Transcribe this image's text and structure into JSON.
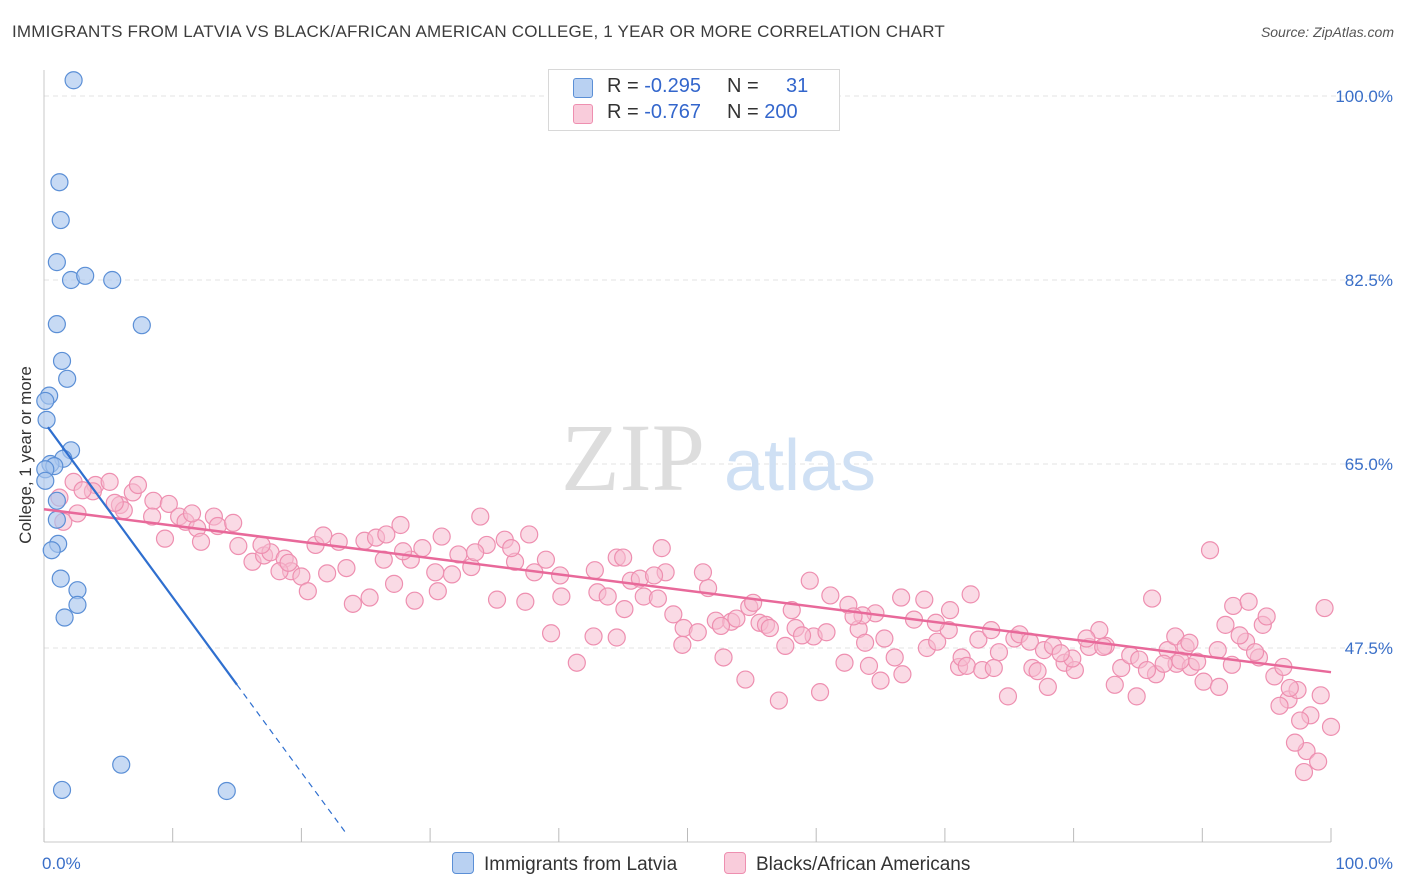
{
  "title": "IMMIGRANTS FROM LATVIA VS BLACK/AFRICAN AMERICAN COLLEGE, 1 YEAR OR MORE CORRELATION CHART",
  "source": "Source: ZipAtlas.com",
  "watermark": {
    "zip": "ZIP",
    "atlas": "atlas"
  },
  "legend": {
    "rows": [
      {
        "r_label": "R =",
        "r_value": "-0.295",
        "n_label": "N =",
        "n_value": "31"
      },
      {
        "r_label": "R =",
        "r_value": "-0.767",
        "n_label": "N =",
        "n_value": "200"
      }
    ]
  },
  "colors": {
    "blue_fill": "#a9c6ee",
    "blue_stroke": "#5b8fd6",
    "blue_line": "#2f6fcf",
    "pink_fill": "#f6bcd0",
    "pink_stroke": "#ee8fb0",
    "pink_line": "#e8699a",
    "grid": "#e3e3e3",
    "tick_label": "#3a6fc8"
  },
  "chart_data": {
    "type": "scatter",
    "title": "IMMIGRANTS FROM LATVIA VS BLACK/AFRICAN AMERICAN COLLEGE, 1 YEAR OR MORE CORRELATION CHART",
    "xlabel": "",
    "ylabel": "College, 1 year or more",
    "xlim": [
      0,
      100
    ],
    "ylim": [
      30,
      102
    ],
    "x_tick_labels": [
      "0.0%",
      "100.0%"
    ],
    "y_ticks": [
      47.5,
      65.0,
      82.5,
      100.0
    ],
    "y_tick_labels": [
      "47.5%",
      "65.0%",
      "82.5%",
      "100.0%"
    ],
    "series": [
      {
        "name": "Immigrants from Latvia",
        "R": -0.295,
        "N": 31,
        "trend": {
          "x0": 0.3,
          "y0": 68.5,
          "x1": 15.0,
          "y1": 44.0,
          "dash_x1": 23.5
        },
        "points": [
          [
            2.3,
            101.5
          ],
          [
            1.2,
            91.8
          ],
          [
            1.3,
            88.2
          ],
          [
            1.0,
            84.2
          ],
          [
            2.1,
            82.5
          ],
          [
            3.2,
            82.9
          ],
          [
            5.3,
            82.5
          ],
          [
            1.0,
            78.3
          ],
          [
            7.6,
            78.2
          ],
          [
            1.4,
            74.8
          ],
          [
            1.8,
            73.1
          ],
          [
            0.4,
            71.5
          ],
          [
            0.1,
            71.0
          ],
          [
            0.2,
            69.2
          ],
          [
            2.1,
            66.3
          ],
          [
            1.5,
            65.5
          ],
          [
            0.5,
            65.0
          ],
          [
            0.8,
            64.8
          ],
          [
            0.1,
            64.5
          ],
          [
            1.0,
            61.5
          ],
          [
            1.0,
            59.7
          ],
          [
            1.1,
            57.4
          ],
          [
            0.6,
            56.8
          ],
          [
            1.3,
            54.1
          ],
          [
            2.6,
            53.0
          ],
          [
            2.6,
            51.6
          ],
          [
            1.6,
            50.4
          ],
          [
            6.0,
            36.4
          ],
          [
            1.4,
            34.0
          ],
          [
            14.2,
            33.9
          ],
          [
            0.1,
            63.4
          ]
        ]
      },
      {
        "name": "Blacks/African Americans",
        "R": -0.767,
        "N": 200,
        "trend": {
          "x0": 0.0,
          "y0": 60.7,
          "x1": 100.0,
          "y1": 45.2
        },
        "points": [
          [
            1.2,
            61.8
          ],
          [
            2.3,
            63.3
          ],
          [
            4.0,
            63.0
          ],
          [
            5.1,
            63.3
          ],
          [
            3.8,
            62.4
          ],
          [
            5.9,
            61.1
          ],
          [
            6.9,
            62.3
          ],
          [
            7.3,
            63.0
          ],
          [
            8.5,
            61.5
          ],
          [
            8.4,
            60.0
          ],
          [
            9.7,
            61.2
          ],
          [
            10.5,
            60.0
          ],
          [
            11.0,
            59.5
          ],
          [
            11.9,
            58.9
          ],
          [
            13.2,
            60.0
          ],
          [
            13.5,
            59.1
          ],
          [
            14.7,
            59.4
          ],
          [
            16.2,
            55.7
          ],
          [
            17.1,
            56.3
          ],
          [
            17.6,
            56.6
          ],
          [
            18.7,
            56.0
          ],
          [
            16.9,
            57.3
          ],
          [
            19.2,
            54.8
          ],
          [
            20.0,
            54.3
          ],
          [
            21.1,
            57.3
          ],
          [
            22.9,
            57.6
          ],
          [
            21.7,
            58.2
          ],
          [
            23.5,
            55.1
          ],
          [
            24.9,
            57.7
          ],
          [
            26.4,
            55.9
          ],
          [
            25.8,
            58.0
          ],
          [
            26.6,
            58.3
          ],
          [
            27.7,
            59.2
          ],
          [
            28.5,
            55.9
          ],
          [
            29.4,
            57.0
          ],
          [
            30.4,
            54.7
          ],
          [
            30.6,
            52.9
          ],
          [
            31.7,
            54.5
          ],
          [
            32.2,
            56.4
          ],
          [
            33.9,
            60.0
          ],
          [
            34.4,
            57.3
          ],
          [
            35.8,
            57.8
          ],
          [
            36.6,
            55.7
          ],
          [
            37.7,
            58.3
          ],
          [
            38.1,
            54.7
          ],
          [
            39.0,
            55.9
          ],
          [
            40.1,
            54.4
          ],
          [
            40.2,
            52.4
          ],
          [
            42.8,
            54.9
          ],
          [
            43.0,
            52.8
          ],
          [
            43.8,
            52.4
          ],
          [
            45.1,
            51.2
          ],
          [
            45.6,
            53.9
          ],
          [
            46.6,
            52.4
          ],
          [
            47.7,
            52.2
          ],
          [
            48.9,
            50.7
          ],
          [
            48.3,
            54.7
          ],
          [
            49.7,
            49.4
          ],
          [
            50.8,
            49.0
          ],
          [
            51.6,
            53.2
          ],
          [
            52.2,
            50.1
          ],
          [
            53.4,
            50.0
          ],
          [
            54.8,
            51.4
          ],
          [
            55.6,
            49.9
          ],
          [
            56.1,
            49.7
          ],
          [
            57.6,
            47.7
          ],
          [
            58.1,
            51.1
          ],
          [
            58.4,
            49.4
          ],
          [
            59.8,
            48.6
          ],
          [
            60.8,
            49.0
          ],
          [
            62.5,
            51.6
          ],
          [
            63.3,
            49.3
          ],
          [
            63.8,
            48.0
          ],
          [
            64.6,
            50.8
          ],
          [
            65.3,
            48.4
          ],
          [
            66.1,
            46.6
          ],
          [
            67.6,
            50.2
          ],
          [
            68.6,
            47.5
          ],
          [
            69.4,
            48.1
          ],
          [
            70.3,
            49.2
          ],
          [
            71.1,
            45.7
          ],
          [
            71.3,
            46.6
          ],
          [
            72.6,
            48.3
          ],
          [
            73.6,
            49.2
          ],
          [
            74.2,
            47.1
          ],
          [
            75.4,
            48.4
          ],
          [
            75.8,
            48.8
          ],
          [
            76.6,
            48.1
          ],
          [
            77.7,
            47.3
          ],
          [
            78.4,
            47.7
          ],
          [
            79.3,
            46.1
          ],
          [
            80.1,
            45.4
          ],
          [
            81.2,
            47.6
          ],
          [
            82.0,
            49.2
          ],
          [
            82.5,
            47.7
          ],
          [
            83.7,
            45.6
          ],
          [
            84.4,
            46.8
          ],
          [
            85.1,
            46.4
          ],
          [
            86.4,
            45.0
          ],
          [
            87.3,
            47.3
          ],
          [
            88.0,
            46.0
          ],
          [
            89.1,
            45.7
          ],
          [
            90.1,
            44.3
          ],
          [
            91.2,
            47.3
          ],
          [
            92.3,
            45.9
          ],
          [
            93.4,
            48.1
          ],
          [
            94.4,
            46.6
          ],
          [
            95.6,
            44.8
          ],
          [
            96.7,
            42.6
          ],
          [
            97.4,
            43.5
          ],
          [
            98.4,
            41.1
          ],
          [
            99.2,
            43.0
          ],
          [
            1.5,
            59.5
          ],
          [
            2.6,
            60.3
          ],
          [
            6.2,
            60.6
          ],
          [
            9.4,
            57.9
          ],
          [
            12.2,
            57.6
          ],
          [
            15.1,
            57.2
          ],
          [
            18.3,
            54.8
          ],
          [
            20.5,
            52.9
          ],
          [
            22.0,
            54.6
          ],
          [
            24.0,
            51.7
          ],
          [
            25.3,
            52.3
          ],
          [
            27.2,
            53.6
          ],
          [
            28.8,
            52.0
          ],
          [
            30.9,
            58.1
          ],
          [
            33.2,
            55.2
          ],
          [
            35.2,
            52.1
          ],
          [
            37.4,
            51.9
          ],
          [
            39.4,
            48.9
          ],
          [
            41.4,
            46.1
          ],
          [
            42.7,
            48.6
          ],
          [
            44.5,
            56.1
          ],
          [
            46.3,
            54.1
          ],
          [
            47.4,
            54.4
          ],
          [
            49.6,
            47.8
          ],
          [
            51.2,
            54.7
          ],
          [
            52.8,
            46.6
          ],
          [
            54.5,
            44.5
          ],
          [
            56.4,
            49.4
          ],
          [
            57.1,
            42.5
          ],
          [
            59.5,
            53.9
          ],
          [
            61.1,
            52.5
          ],
          [
            62.2,
            46.1
          ],
          [
            64.1,
            45.8
          ],
          [
            65.0,
            44.4
          ],
          [
            66.7,
            45.0
          ],
          [
            68.4,
            52.1
          ],
          [
            69.3,
            49.9
          ],
          [
            70.4,
            51.1
          ],
          [
            71.7,
            45.8
          ],
          [
            72.9,
            45.4
          ],
          [
            73.8,
            45.6
          ],
          [
            74.9,
            42.9
          ],
          [
            76.8,
            45.6
          ],
          [
            77.2,
            45.3
          ],
          [
            78.0,
            43.8
          ],
          [
            79.9,
            46.5
          ],
          [
            81.0,
            48.4
          ],
          [
            82.3,
            47.6
          ],
          [
            83.2,
            44.0
          ],
          [
            84.9,
            42.9
          ],
          [
            86.1,
            52.2
          ],
          [
            87.9,
            48.6
          ],
          [
            88.7,
            47.6
          ],
          [
            89.6,
            46.2
          ],
          [
            91.3,
            43.8
          ],
          [
            92.4,
            51.5
          ],
          [
            93.6,
            51.9
          ],
          [
            94.7,
            49.7
          ],
          [
            96.0,
            42.0
          ],
          [
            96.8,
            43.7
          ],
          [
            97.6,
            40.6
          ],
          [
            98.1,
            37.7
          ],
          [
            99.0,
            36.7
          ],
          [
            36.3,
            57.0
          ],
          [
            44.5,
            48.5
          ],
          [
            52.6,
            49.6
          ],
          [
            55.1,
            51.8
          ],
          [
            60.3,
            43.3
          ],
          [
            63.6,
            50.6
          ],
          [
            66.6,
            52.3
          ],
          [
            85.7,
            45.4
          ],
          [
            90.6,
            56.8
          ],
          [
            94.1,
            47.1
          ],
          [
            97.2,
            38.5
          ],
          [
            100.0,
            40.0
          ],
          [
            97.9,
            35.7
          ],
          [
            92.9,
            48.7
          ],
          [
            91.8,
            49.7
          ],
          [
            95.0,
            50.5
          ],
          [
            89.0,
            48.0
          ],
          [
            87.0,
            46.0
          ],
          [
            3.0,
            62.5
          ],
          [
            5.5,
            61.3
          ],
          [
            11.5,
            60.3
          ],
          [
            19.0,
            55.6
          ],
          [
            27.9,
            56.7
          ],
          [
            33.5,
            56.6
          ],
          [
            45.0,
            56.1
          ],
          [
            48.0,
            57.0
          ],
          [
            53.8,
            50.3
          ],
          [
            58.9,
            48.7
          ],
          [
            62.9,
            50.5
          ],
          [
            72.0,
            52.6
          ],
          [
            79.0,
            47.0
          ],
          [
            88.3,
            46.3
          ],
          [
            96.3,
            45.7
          ],
          [
            99.5,
            51.3
          ]
        ]
      }
    ]
  },
  "bottom_legend": {
    "items": [
      {
        "label": "Immigrants from Latvia"
      },
      {
        "label": "Blacks/African Americans"
      }
    ]
  }
}
